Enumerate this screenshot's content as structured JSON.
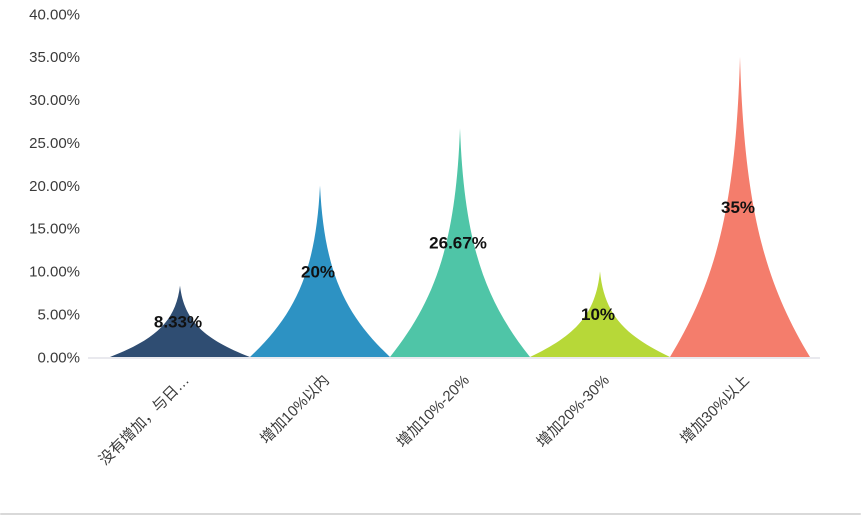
{
  "page": {
    "background": "#ffffff",
    "bottom_border_color": "#d9d9d9"
  },
  "chart_data": {
    "type": "bar",
    "variant": "peaked-spike-pictorial",
    "title": "",
    "xlabel": "",
    "ylabel": "",
    "categories": [
      "没有增加，与日…",
      "增加10%以内",
      "增加10%-20%",
      "增加20%-30%",
      "增加30%以上"
    ],
    "values": [
      8.33,
      20,
      26.67,
      10,
      35
    ],
    "value_labels": [
      "8.33%",
      "20%",
      "26.67%",
      "10%",
      "35%"
    ],
    "series_colors": [
      "#2f4d72",
      "#2d92c3",
      "#4fc5a7",
      "#b7d838",
      "#f47d6c"
    ],
    "y_axis": {
      "min": 0,
      "max": 40,
      "step": 5,
      "unit": "%",
      "tick_labels": [
        "40.00%",
        "35.00%",
        "30.00%",
        "25.00%",
        "20.00%",
        "15.00%",
        "10.00%",
        "5.00%",
        "0.00%"
      ]
    },
    "x_axis": {
      "label_rotation_deg": 45
    },
    "grid": false,
    "legend": null,
    "styles": {
      "axis_line_color": "#e2e2e8",
      "tick_label_color": "#3a3a3a",
      "x_label_color": "#3a3a3a",
      "value_label_color": "#111111",
      "tick_font_size": 15,
      "x_label_font_size": 15,
      "value_label_font_size": 17
    }
  }
}
